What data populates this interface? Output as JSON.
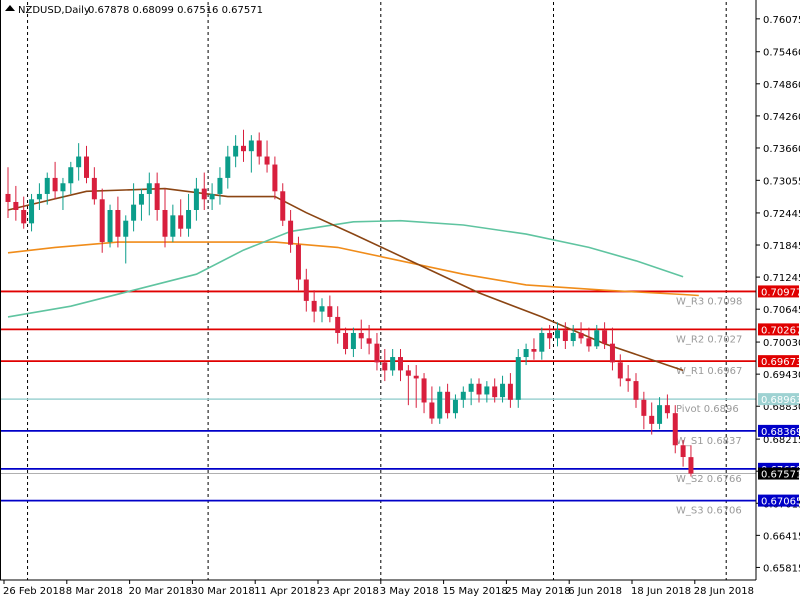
{
  "header": {
    "symbol": "NZDUSD,Daily",
    "ohlc": "0.67878 0.68099 0.67516 0.67571"
  },
  "colors": {
    "bull": "#0b9d8a",
    "bear": "#d81f3d",
    "ma_fast": "#8b4513",
    "ma_mid": "#5fc4a0",
    "ma_slow": "#f08c1a",
    "resistance": "#e00000",
    "pivot": "#9ed2d2",
    "support": "#0000c8",
    "current": "#000000"
  },
  "chart_data": {
    "type": "candlestick",
    "title": "NZDUSD,Daily",
    "ylim": [
      0.6558,
      0.7639
    ],
    "y_ticks": [
      "0.76075",
      "0.75460",
      "0.74860",
      "0.74260",
      "0.73660",
      "0.73055",
      "0.72445",
      "0.71845",
      "0.71245",
      "0.70645",
      "0.70030",
      "0.69430",
      "0.68830",
      "0.68215",
      "0.67615",
      "0.67015",
      "0.66415",
      "0.65815"
    ],
    "x_ticks": [
      {
        "label": "26 Feb 2018",
        "i": 0
      },
      {
        "label": "8 Mar 2018",
        "i": 8
      },
      {
        "label": "20 Mar 2018",
        "i": 16
      },
      {
        "label": "30 Mar 2018",
        "i": 24
      },
      {
        "label": "11 Apr 2018",
        "i": 32
      },
      {
        "label": "23 Apr 2018",
        "i": 40
      },
      {
        "label": "3 May 2018",
        "i": 48
      },
      {
        "label": "15 May 2018",
        "i": 56
      },
      {
        "label": "25 May 2018",
        "i": 64
      },
      {
        "label": "6 Jun 2018",
        "i": 72
      },
      {
        "label": "18 Jun 2018",
        "i": 80
      },
      {
        "label": "28 Jun 2018",
        "i": 88
      }
    ],
    "candles": [
      {
        "o": 0.728,
        "h": 0.733,
        "l": 0.7235,
        "c": 0.7265
      },
      {
        "o": 0.7265,
        "h": 0.7295,
        "l": 0.723,
        "c": 0.725
      },
      {
        "o": 0.725,
        "h": 0.7275,
        "l": 0.7215,
        "c": 0.7225
      },
      {
        "o": 0.7225,
        "h": 0.728,
        "l": 0.721,
        "c": 0.727
      },
      {
        "o": 0.727,
        "h": 0.73,
        "l": 0.725,
        "c": 0.728
      },
      {
        "o": 0.728,
        "h": 0.732,
        "l": 0.726,
        "c": 0.731
      },
      {
        "o": 0.731,
        "h": 0.734,
        "l": 0.727,
        "c": 0.7285
      },
      {
        "o": 0.7285,
        "h": 0.731,
        "l": 0.725,
        "c": 0.73
      },
      {
        "o": 0.73,
        "h": 0.734,
        "l": 0.728,
        "c": 0.733
      },
      {
        "o": 0.733,
        "h": 0.7375,
        "l": 0.7305,
        "c": 0.735
      },
      {
        "o": 0.735,
        "h": 0.737,
        "l": 0.73,
        "c": 0.731
      },
      {
        "o": 0.731,
        "h": 0.733,
        "l": 0.726,
        "c": 0.727
      },
      {
        "o": 0.727,
        "h": 0.729,
        "l": 0.717,
        "c": 0.719
      },
      {
        "o": 0.719,
        "h": 0.726,
        "l": 0.718,
        "c": 0.725
      },
      {
        "o": 0.725,
        "h": 0.7275,
        "l": 0.718,
        "c": 0.72
      },
      {
        "o": 0.72,
        "h": 0.724,
        "l": 0.715,
        "c": 0.723
      },
      {
        "o": 0.723,
        "h": 0.73,
        "l": 0.721,
        "c": 0.726
      },
      {
        "o": 0.726,
        "h": 0.729,
        "l": 0.723,
        "c": 0.728
      },
      {
        "o": 0.728,
        "h": 0.732,
        "l": 0.724,
        "c": 0.73
      },
      {
        "o": 0.73,
        "h": 0.732,
        "l": 0.723,
        "c": 0.725
      },
      {
        "o": 0.725,
        "h": 0.729,
        "l": 0.718,
        "c": 0.72
      },
      {
        "o": 0.72,
        "h": 0.726,
        "l": 0.719,
        "c": 0.724
      },
      {
        "o": 0.724,
        "h": 0.727,
        "l": 0.72,
        "c": 0.7215
      },
      {
        "o": 0.7215,
        "h": 0.728,
        "l": 0.72,
        "c": 0.725
      },
      {
        "o": 0.725,
        "h": 0.731,
        "l": 0.723,
        "c": 0.729
      },
      {
        "o": 0.729,
        "h": 0.732,
        "l": 0.725,
        "c": 0.727
      },
      {
        "o": 0.727,
        "h": 0.73,
        "l": 0.725,
        "c": 0.728
      },
      {
        "o": 0.728,
        "h": 0.733,
        "l": 0.726,
        "c": 0.731
      },
      {
        "o": 0.731,
        "h": 0.737,
        "l": 0.729,
        "c": 0.735
      },
      {
        "o": 0.735,
        "h": 0.739,
        "l": 0.733,
        "c": 0.737
      },
      {
        "o": 0.737,
        "h": 0.74,
        "l": 0.734,
        "c": 0.736
      },
      {
        "o": 0.736,
        "h": 0.739,
        "l": 0.732,
        "c": 0.738
      },
      {
        "o": 0.738,
        "h": 0.7395,
        "l": 0.7335,
        "c": 0.735
      },
      {
        "o": 0.735,
        "h": 0.738,
        "l": 0.732,
        "c": 0.7335
      },
      {
        "o": 0.7335,
        "h": 0.735,
        "l": 0.727,
        "c": 0.7285
      },
      {
        "o": 0.7285,
        "h": 0.73,
        "l": 0.722,
        "c": 0.723
      },
      {
        "o": 0.723,
        "h": 0.725,
        "l": 0.717,
        "c": 0.7185
      },
      {
        "o": 0.7185,
        "h": 0.72,
        "l": 0.71,
        "c": 0.712
      },
      {
        "o": 0.712,
        "h": 0.714,
        "l": 0.706,
        "c": 0.708
      },
      {
        "o": 0.708,
        "h": 0.71,
        "l": 0.704,
        "c": 0.706
      },
      {
        "o": 0.706,
        "h": 0.7085,
        "l": 0.704,
        "c": 0.707
      },
      {
        "o": 0.707,
        "h": 0.709,
        "l": 0.704,
        "c": 0.705
      },
      {
        "o": 0.705,
        "h": 0.707,
        "l": 0.7,
        "c": 0.702
      },
      {
        "o": 0.702,
        "h": 0.703,
        "l": 0.698,
        "c": 0.699
      },
      {
        "o": 0.699,
        "h": 0.703,
        "l": 0.6975,
        "c": 0.702
      },
      {
        "o": 0.702,
        "h": 0.7045,
        "l": 0.699,
        "c": 0.701
      },
      {
        "o": 0.701,
        "h": 0.7035,
        "l": 0.698,
        "c": 0.7
      },
      {
        "o": 0.7,
        "h": 0.702,
        "l": 0.695,
        "c": 0.6965
      },
      {
        "o": 0.6965,
        "h": 0.699,
        "l": 0.693,
        "c": 0.695
      },
      {
        "o": 0.695,
        "h": 0.699,
        "l": 0.694,
        "c": 0.6975
      },
      {
        "o": 0.6975,
        "h": 0.699,
        "l": 0.693,
        "c": 0.695
      },
      {
        "o": 0.695,
        "h": 0.696,
        "l": 0.6885,
        "c": 0.694
      },
      {
        "o": 0.694,
        "h": 0.696,
        "l": 0.688,
        "c": 0.6935
      },
      {
        "o": 0.6935,
        "h": 0.6945,
        "l": 0.687,
        "c": 0.689
      },
      {
        "o": 0.689,
        "h": 0.692,
        "l": 0.685,
        "c": 0.686
      },
      {
        "o": 0.686,
        "h": 0.692,
        "l": 0.685,
        "c": 0.691
      },
      {
        "o": 0.691,
        "h": 0.6925,
        "l": 0.686,
        "c": 0.687
      },
      {
        "o": 0.687,
        "h": 0.6905,
        "l": 0.686,
        "c": 0.6895
      },
      {
        "o": 0.6895,
        "h": 0.692,
        "l": 0.688,
        "c": 0.691
      },
      {
        "o": 0.691,
        "h": 0.6935,
        "l": 0.6885,
        "c": 0.6925
      },
      {
        "o": 0.6925,
        "h": 0.6935,
        "l": 0.689,
        "c": 0.6905
      },
      {
        "o": 0.6905,
        "h": 0.693,
        "l": 0.689,
        "c": 0.692
      },
      {
        "o": 0.692,
        "h": 0.6935,
        "l": 0.689,
        "c": 0.69
      },
      {
        "o": 0.69,
        "h": 0.694,
        "l": 0.689,
        "c": 0.6925
      },
      {
        "o": 0.6925,
        "h": 0.6945,
        "l": 0.688,
        "c": 0.6895
      },
      {
        "o": 0.6895,
        "h": 0.699,
        "l": 0.688,
        "c": 0.6975
      },
      {
        "o": 0.6975,
        "h": 0.7,
        "l": 0.696,
        "c": 0.699
      },
      {
        "o": 0.699,
        "h": 0.701,
        "l": 0.697,
        "c": 0.6985
      },
      {
        "o": 0.6985,
        "h": 0.703,
        "l": 0.697,
        "c": 0.702
      },
      {
        "o": 0.702,
        "h": 0.7035,
        "l": 0.699,
        "c": 0.701
      },
      {
        "o": 0.701,
        "h": 0.704,
        "l": 0.6995,
        "c": 0.7025
      },
      {
        "o": 0.7025,
        "h": 0.704,
        "l": 0.699,
        "c": 0.7005
      },
      {
        "o": 0.7005,
        "h": 0.7035,
        "l": 0.6995,
        "c": 0.702
      },
      {
        "o": 0.702,
        "h": 0.704,
        "l": 0.7,
        "c": 0.701
      },
      {
        "o": 0.701,
        "h": 0.703,
        "l": 0.6985,
        "c": 0.6995
      },
      {
        "o": 0.6995,
        "h": 0.7035,
        "l": 0.699,
        "c": 0.7025
      },
      {
        "o": 0.7025,
        "h": 0.704,
        "l": 0.699,
        "c": 0.7
      },
      {
        "o": 0.7,
        "h": 0.703,
        "l": 0.695,
        "c": 0.6965
      },
      {
        "o": 0.6965,
        "h": 0.698,
        "l": 0.692,
        "c": 0.6935
      },
      {
        "o": 0.6935,
        "h": 0.696,
        "l": 0.691,
        "c": 0.693
      },
      {
        "o": 0.693,
        "h": 0.6945,
        "l": 0.688,
        "c": 0.6895
      },
      {
        "o": 0.6895,
        "h": 0.691,
        "l": 0.684,
        "c": 0.6865
      },
      {
        "o": 0.6865,
        "h": 0.689,
        "l": 0.683,
        "c": 0.685
      },
      {
        "o": 0.685,
        "h": 0.69,
        "l": 0.684,
        "c": 0.6885
      },
      {
        "o": 0.6885,
        "h": 0.6905,
        "l": 0.686,
        "c": 0.687
      },
      {
        "o": 0.687,
        "h": 0.6885,
        "l": 0.6795,
        "c": 0.681
      },
      {
        "o": 0.681,
        "h": 0.682,
        "l": 0.677,
        "c": 0.6788
      },
      {
        "o": 0.67878,
        "h": 0.68099,
        "l": 0.67516,
        "c": 0.67571
      }
    ],
    "ma_fast": [
      [
        0,
        0.725
      ],
      [
        10,
        0.7285
      ],
      [
        20,
        0.729
      ],
      [
        28,
        0.7275
      ],
      [
        34,
        0.7275
      ],
      [
        38,
        0.7245
      ],
      [
        44,
        0.7205
      ],
      [
        52,
        0.715
      ],
      [
        60,
        0.7095
      ],
      [
        68,
        0.705
      ],
      [
        76,
        0.7
      ],
      [
        84,
        0.696
      ],
      [
        86,
        0.695
      ]
    ],
    "ma_slow": [
      [
        0,
        0.717
      ],
      [
        6,
        0.718
      ],
      [
        14,
        0.719
      ],
      [
        24,
        0.719
      ],
      [
        34,
        0.719
      ],
      [
        42,
        0.718
      ],
      [
        50,
        0.7155
      ],
      [
        58,
        0.713
      ],
      [
        66,
        0.711
      ],
      [
        76,
        0.71
      ],
      [
        86,
        0.7092
      ],
      [
        88,
        0.709
      ]
    ],
    "ma_mid": [
      [
        0,
        0.705
      ],
      [
        8,
        0.707
      ],
      [
        16,
        0.71
      ],
      [
        24,
        0.713
      ],
      [
        30,
        0.7175
      ],
      [
        36,
        0.721
      ],
      [
        44,
        0.7228
      ],
      [
        50,
        0.723
      ],
      [
        58,
        0.7222
      ],
      [
        66,
        0.7205
      ],
      [
        74,
        0.718
      ],
      [
        80,
        0.7155
      ],
      [
        86,
        0.7125
      ]
    ],
    "levels": [
      {
        "name": "W_R3",
        "text": "W_R3 0.7098",
        "value": 0.70977,
        "badge": "0.70977",
        "kind": "resistance"
      },
      {
        "name": "W_R2",
        "text": "W_R2 0.7027",
        "value": 0.70267,
        "badge": "0.70267",
        "kind": "resistance"
      },
      {
        "name": "W_R1",
        "text": "W_R1 0.6967",
        "value": 0.69673,
        "badge": "0.69673",
        "kind": "resistance"
      },
      {
        "name": "Pivot",
        "text": "Pivot 0.6896",
        "value": 0.68963,
        "badge": "0.68963",
        "kind": "pivot"
      },
      {
        "name": "W_S1",
        "text": "W_S1 0.6837",
        "value": 0.68369,
        "badge": "0.68369",
        "kind": "support"
      },
      {
        "name": "W_S2",
        "text": "W_S2 0.6766",
        "value": 0.67659,
        "badge": "0.67659",
        "kind": "support"
      },
      {
        "name": "W_S3",
        "text": "W_S3 0.6706",
        "value": 0.67065,
        "badge": "0.67065",
        "kind": "support"
      }
    ],
    "current_price": {
      "value": 0.67571,
      "badge": "0.67571"
    }
  }
}
